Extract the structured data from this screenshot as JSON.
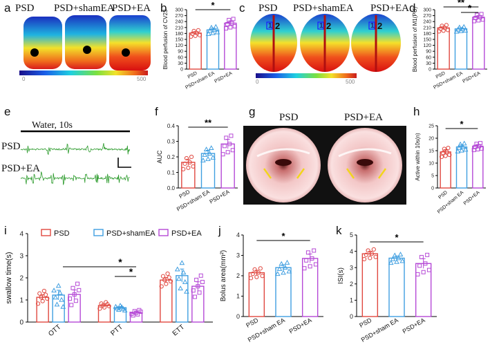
{
  "panel_labels": {
    "a": "a",
    "b": "b",
    "c": "c",
    "d": "d",
    "e": "e",
    "f": "f",
    "g": "g",
    "h": "h",
    "i": "i",
    "j": "j",
    "k": "k"
  },
  "colors": {
    "psd": "#e0473f",
    "sham": "#3f9ee0",
    "ea": "#b548d6"
  },
  "panel_a": {
    "titles": [
      "PSD",
      "PSD+shamEA",
      "PSD+EA"
    ],
    "scale_min": "0",
    "scale_max": "500"
  },
  "panel_c": {
    "titles": [
      "PSD",
      "PSD+shamEA",
      "PSD+EA"
    ],
    "scale_min": "0",
    "scale_max": "500",
    "roi_labels": [
      "1",
      "2"
    ]
  },
  "panel_e": {
    "stimulus": "Water, 10s",
    "rows": [
      "PSD",
      "PSD+EA"
    ]
  },
  "panel_g": {
    "titles": [
      "PSD",
      "PSD+EA"
    ]
  },
  "legend": [
    "PSD",
    "PSD+shamEA",
    "PSD+EA"
  ],
  "chart_data": [
    {
      "id": "b",
      "type": "bar",
      "ylabel": "Blood perfusion of CV23",
      "categories": [
        "PSD",
        "PSD+sham EA",
        "PSD+EA"
      ],
      "values": [
        182,
        198,
        232
      ],
      "sem": [
        8,
        9,
        12
      ],
      "ylim": [
        0,
        300
      ],
      "yticks": [
        "0",
        "30",
        "60",
        "90",
        "120",
        "150",
        "180",
        "210",
        "240",
        "270",
        "300"
      ],
      "sig": [
        {
          "from": 0,
          "to": 2,
          "label": "*"
        }
      ]
    },
    {
      "id": "d",
      "type": "bar",
      "ylabel": "Blood perfusion of M1(PU)",
      "categories": [
        "PSD",
        "PSD+sham EA",
        "PSD+EA"
      ],
      "values": [
        208,
        203,
        262
      ],
      "sem": [
        8,
        6,
        9
      ],
      "ylim": [
        0,
        300
      ],
      "yticks": [
        "0",
        "30",
        "60",
        "90",
        "120",
        "150",
        "180",
        "210",
        "240",
        "270",
        "300"
      ],
      "sig": [
        {
          "from": 0,
          "to": 2,
          "label": "**"
        },
        {
          "from": 1,
          "to": 2,
          "label": "*"
        }
      ]
    },
    {
      "id": "f",
      "type": "bar",
      "ylabel": "AUC",
      "categories": [
        "PSD",
        "PSD+sham EA",
        "PSD+EA"
      ],
      "values": [
        0.165,
        0.222,
        0.283
      ],
      "sem": [
        0.02,
        0.02,
        0.03
      ],
      "ylim": [
        0,
        0.4
      ],
      "yticks": [
        "0.0",
        "0.1",
        "0.2",
        "0.3",
        "0.4"
      ],
      "sig": [
        {
          "from": 0,
          "to": 2,
          "label": "**"
        }
      ]
    },
    {
      "id": "h",
      "type": "bar",
      "ylabel": "Active within 10s(n)",
      "categories": [
        "PSD",
        "PSD+sham EA",
        "PSD+EA"
      ],
      "values": [
        14.5,
        16.5,
        16.8
      ],
      "sem": [
        0.9,
        0.8,
        0.7
      ],
      "ylim": [
        0,
        25
      ],
      "yticks": [
        "0",
        "5",
        "10",
        "15",
        "20",
        "25"
      ],
      "sig": [
        {
          "from": 0,
          "to": 2,
          "label": "*"
        }
      ]
    },
    {
      "id": "i",
      "type": "grouped_bar",
      "ylabel": "swallow time(s)",
      "categories": [
        "OTT",
        "PTT",
        "ETT"
      ],
      "series": [
        {
          "name": "PSD",
          "values": [
            1.12,
            0.75,
            1.9
          ],
          "sem": [
            0.12,
            0.06,
            0.12
          ]
        },
        {
          "name": "PSD+shamEA",
          "values": [
            1.22,
            0.65,
            2.1
          ],
          "sem": [
            0.22,
            0.05,
            0.3
          ]
        },
        {
          "name": "PSD+EA",
          "values": [
            1.25,
            0.42,
            1.62
          ],
          "sem": [
            0.2,
            0.05,
            0.2
          ]
        }
      ],
      "ylim": [
        0,
        4
      ],
      "yticks": [
        "0",
        "1",
        "2",
        "3",
        "4"
      ],
      "sig": [
        {
          "label": "*"
        },
        {
          "label": "*"
        }
      ]
    },
    {
      "id": "j",
      "type": "bar",
      "ylabel": "Bolus area(mm²)",
      "categories": [
        "PSD",
        "PSD+sham EA",
        "PSD+EA"
      ],
      "values": [
        2.15,
        2.4,
        2.85
      ],
      "sem": [
        0.12,
        0.14,
        0.22
      ],
      "ylim": [
        0,
        4
      ],
      "yticks": [
        "0",
        "1",
        "2",
        "3",
        "4"
      ],
      "sig": [
        {
          "from": 0,
          "to": 2,
          "label": "*"
        }
      ]
    },
    {
      "id": "k",
      "type": "bar",
      "ylabel": "ISI(s)",
      "categories": [
        "PSD",
        "PSD+sham EA",
        "PSD+EA"
      ],
      "values": [
        3.85,
        3.58,
        3.25
      ],
      "sem": [
        0.15,
        0.13,
        0.3
      ],
      "ylim": [
        0,
        5
      ],
      "yticks": [
        "0",
        "1",
        "2",
        "3",
        "4",
        "5"
      ],
      "sig": [
        {
          "from": 0,
          "to": 2,
          "label": "*"
        }
      ]
    }
  ]
}
